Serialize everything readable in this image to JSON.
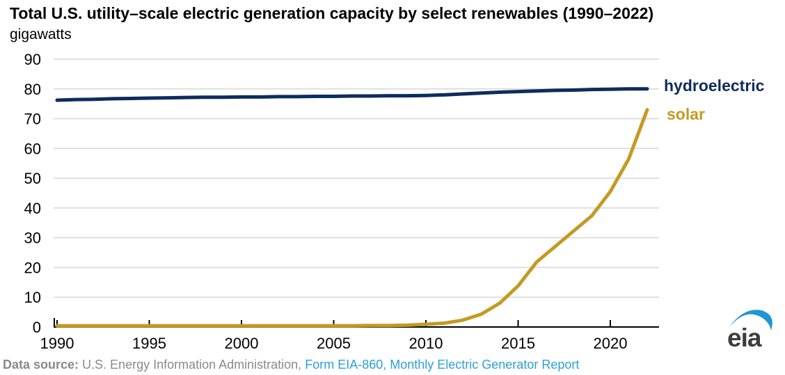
{
  "header": {
    "title": "Total U.S. utility–scale electric generation capacity by select renewables (1990–2022)",
    "subtitle": "gigawatts"
  },
  "footer": {
    "label": "Data source: ",
    "source": "U.S. Energy Information Administration, ",
    "link": "Form EIA-860, Monthly Electric Generator Report"
  },
  "logo": {
    "text": "eia"
  },
  "colors": {
    "hydro": "#0e2c5c",
    "solar": "#c39b23",
    "grid": "#dcdcdc",
    "axis": "#000000",
    "tick_label": "#000000",
    "footer_gray": "#8a8a8a",
    "link_blue": "#2b9fd9",
    "logo_text": "#3d3d3d",
    "logo_swoosh": "#2095d3"
  },
  "chart_data": {
    "type": "line",
    "title": "Total U.S. utility–scale electric generation capacity by select renewables (1990–2022)",
    "ylabel": "gigawatts",
    "xlabel": "",
    "xlim": [
      1990,
      2022
    ],
    "ylim": [
      0,
      90
    ],
    "x_ticks": [
      1990,
      1995,
      2000,
      2005,
      2010,
      2015,
      2020
    ],
    "y_ticks": [
      0,
      10,
      20,
      30,
      40,
      50,
      60,
      70,
      80,
      90
    ],
    "grid": "horizontal",
    "legend_position": "right-end-labels",
    "x": [
      1990,
      1991,
      1992,
      1993,
      1994,
      1995,
      1996,
      1997,
      1998,
      1999,
      2000,
      2001,
      2002,
      2003,
      2004,
      2005,
      2006,
      2007,
      2008,
      2009,
      2010,
      2011,
      2012,
      2013,
      2014,
      2015,
      2016,
      2017,
      2018,
      2019,
      2020,
      2021,
      2022
    ],
    "series": [
      {
        "name": "hydroelectric",
        "color": "#0e2c5c",
        "values": [
          76.2,
          76.4,
          76.5,
          76.7,
          76.8,
          76.9,
          77.0,
          77.1,
          77.2,
          77.2,
          77.3,
          77.3,
          77.4,
          77.4,
          77.5,
          77.5,
          77.6,
          77.6,
          77.7,
          77.7,
          77.8,
          78.0,
          78.3,
          78.6,
          78.9,
          79.1,
          79.3,
          79.5,
          79.6,
          79.8,
          79.9,
          80.0,
          80.0
        ]
      },
      {
        "name": "solar",
        "color": "#c39b23",
        "values": [
          0.4,
          0.4,
          0.4,
          0.4,
          0.4,
          0.4,
          0.4,
          0.4,
          0.4,
          0.4,
          0.4,
          0.4,
          0.4,
          0.4,
          0.4,
          0.4,
          0.4,
          0.5,
          0.5,
          0.6,
          0.9,
          1.3,
          2.3,
          4.3,
          8.0,
          13.8,
          21.8,
          27.0,
          32.2,
          37.4,
          45.5,
          56.5,
          73.0
        ]
      }
    ]
  }
}
